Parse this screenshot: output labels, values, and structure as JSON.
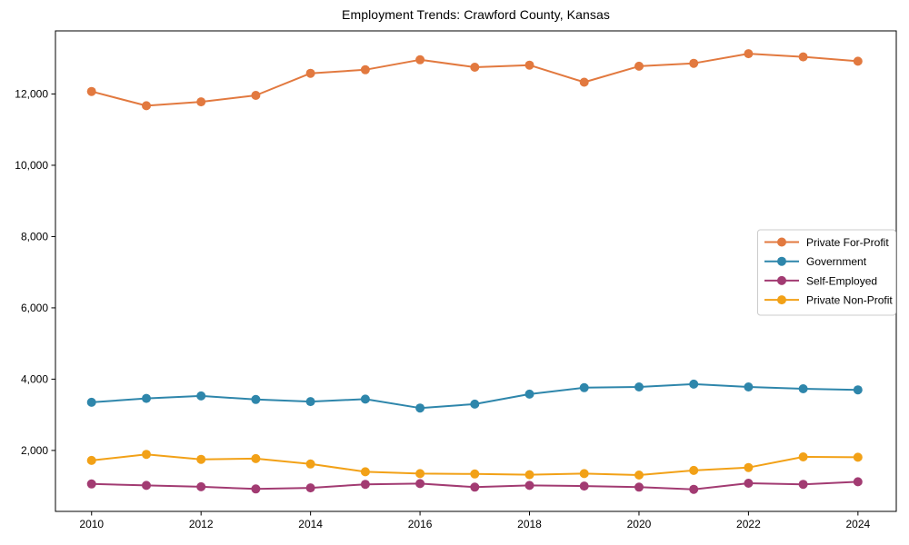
{
  "figure": {
    "background": "#ffffff"
  },
  "chart_data": {
    "type": "line",
    "title": "Employment Trends: Crawford County, Kansas",
    "xlabel": "",
    "ylabel": "",
    "x": [
      2010,
      2011,
      2012,
      2013,
      2014,
      2015,
      2016,
      2017,
      2018,
      2019,
      2020,
      2021,
      2022,
      2023,
      2024
    ],
    "series": [
      {
        "name": "Private For-Profit",
        "color": "#E2793F",
        "values": [
          12070,
          11670,
          11780,
          11960,
          12580,
          12680,
          12960,
          12750,
          12810,
          12330,
          12780,
          12860,
          13130,
          13040,
          12920
        ]
      },
      {
        "name": "Government",
        "color": "#2E86AB",
        "values": [
          3350,
          3460,
          3530,
          3430,
          3370,
          3440,
          3190,
          3300,
          3580,
          3760,
          3780,
          3860,
          3780,
          3730,
          3700
        ]
      },
      {
        "name": "Self-Employed",
        "color": "#A23B72",
        "values": [
          1060,
          1020,
          980,
          920,
          950,
          1050,
          1070,
          970,
          1020,
          1000,
          970,
          910,
          1080,
          1050,
          1120
        ]
      },
      {
        "name": "Private Non-Profit",
        "color": "#F2A117",
        "values": [
          1720,
          1890,
          1750,
          1770,
          1620,
          1400,
          1350,
          1340,
          1320,
          1350,
          1310,
          1440,
          1520,
          1820,
          1810
        ]
      }
    ],
    "x_ticks": [
      2010,
      2012,
      2014,
      2016,
      2018,
      2020,
      2022,
      2024
    ],
    "x_tick_labels": [
      "2010",
      "2012",
      "2014",
      "2016",
      "2018",
      "2020",
      "2022",
      "2024"
    ],
    "y_ticks": [
      2000,
      4000,
      6000,
      8000,
      10000,
      12000
    ],
    "y_tick_labels": [
      "2,000",
      "4,000",
      "6,000",
      "8,000",
      "10,000",
      "12,000"
    ],
    "xlim": [
      2009.34,
      2024.7
    ],
    "ylim": [
      290,
      13770
    ],
    "grid": false,
    "legend_position": "center-right",
    "marker": "circle",
    "marker_size": 5,
    "line_width": 2,
    "axis_color": "#000000",
    "tick_label_color": "#000000",
    "legend_border_color": "#cccccc",
    "legend_background": "#ffffff"
  }
}
